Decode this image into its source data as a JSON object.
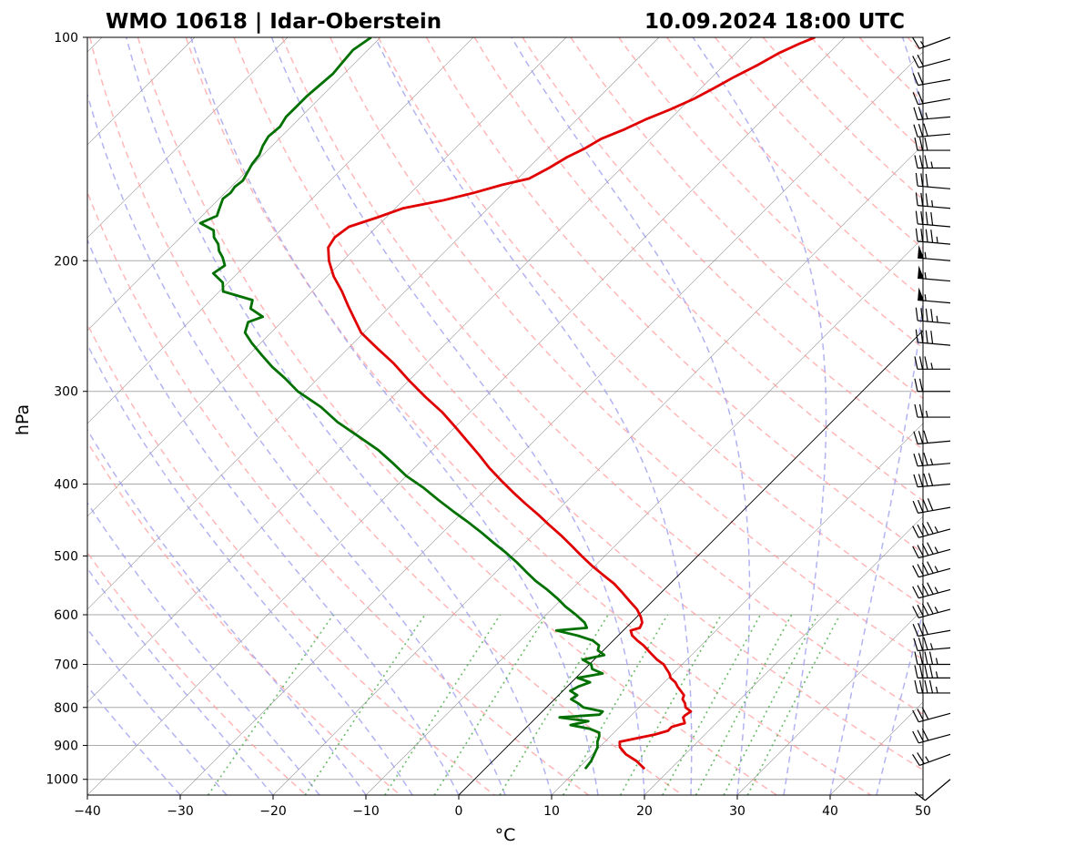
{
  "chart_data": {
    "type": "line",
    "subtype": "skew-t log-p sounding",
    "title_left": "WMO 10618 | Idar-Oberstein",
    "title_right": "10.09.2024 18:00 UTC",
    "xlabel": "°C",
    "ylabel": "hPa",
    "xlim": [
      -40,
      50
    ],
    "ylim": [
      1050,
      100
    ],
    "x_ticks": [
      -40,
      -30,
      -20,
      -10,
      0,
      10,
      20,
      30,
      40,
      50
    ],
    "x_tick_labels": [
      "−40",
      "−30",
      "−20",
      "−10",
      "0",
      "10",
      "20",
      "30",
      "40",
      "50"
    ],
    "y_ticks": [
      1000,
      900,
      800,
      700,
      600,
      500,
      400,
      300,
      200,
      100
    ],
    "y_tick_labels": [
      "1000",
      "900",
      "800",
      "700",
      "600",
      "500",
      "400",
      "300",
      "200",
      "100"
    ],
    "colors": {
      "temperature": "#e00000",
      "dewpoint": "#007000",
      "dry_adiabat": "#ff9999",
      "moist_adiabat": "#9999ee",
      "mixing_ratio": "#44aa44",
      "isotherm": "#777777",
      "grid": "#aaaaaa"
    },
    "series": [
      {
        "name": "Temperature",
        "pressure": [
          968,
          945,
          925,
          905,
          890,
          870,
          860,
          850,
          840,
          825,
          820,
          810,
          800,
          790,
          780,
          770,
          760,
          750,
          740,
          730,
          720,
          710,
          700,
          690,
          680,
          670,
          660,
          650,
          640,
          630,
          625,
          615,
          605,
          590,
          575,
          560,
          545,
          530,
          515,
          500,
          485,
          470,
          455,
          440,
          425,
          410,
          395,
          380,
          365,
          350,
          335,
          320,
          305,
          290,
          275,
          262,
          250,
          240,
          230,
          220,
          210,
          200,
          192,
          186,
          180,
          175,
          170,
          166,
          162,
          158,
          155,
          150,
          145,
          141,
          137,
          133,
          129,
          125,
          121,
          117,
          113,
          109,
          105,
          102,
          100
        ],
        "values": [
          17.2,
          15.5,
          13.6,
          12.2,
          11.6,
          14.6,
          15.6,
          15.6,
          16.6,
          15.8,
          15.8,
          16.0,
          15.0,
          14.5,
          13.8,
          13.5,
          12.7,
          11.9,
          11.2,
          10.2,
          9.6,
          8.8,
          8.0,
          6.8,
          5.8,
          4.8,
          3.8,
          2.6,
          1.5,
          0.8,
          1.5,
          1.2,
          0.5,
          -0.8,
          -2.5,
          -4.2,
          -6.0,
          -8.2,
          -10.4,
          -12.5,
          -14.6,
          -16.8,
          -19.2,
          -21.6,
          -24.2,
          -26.8,
          -29.4,
          -32.0,
          -34.5,
          -37.2,
          -40.0,
          -43.0,
          -46.5,
          -50.0,
          -53.5,
          -57.0,
          -60.3,
          -62.4,
          -64.6,
          -66.8,
          -69.3,
          -71.5,
          -73.0,
          -73.4,
          -73.0,
          -71.0,
          -69.2,
          -65.8,
          -63.2,
          -61.0,
          -58.8,
          -57.8,
          -57.0,
          -56.0,
          -55.3,
          -53.8,
          -52.6,
          -51.0,
          -49.6,
          -48.6,
          -47.6,
          -46.4,
          -45.4,
          -44.2,
          -43.2
        ]
      },
      {
        "name": "Dewpoint",
        "pressure": [
          968,
          945,
          925,
          905,
          890,
          875,
          865,
          855,
          845,
          835,
          825,
          818,
          810,
          800,
          790,
          780,
          770,
          760,
          750,
          740,
          730,
          720,
          710,
          700,
          690,
          680,
          670,
          660,
          650,
          640,
          630,
          625,
          615,
          600,
          585,
          570,
          555,
          540,
          525,
          510,
          495,
          480,
          465,
          450,
          435,
          420,
          405,
          390,
          375,
          360,
          345,
          330,
          315,
          300,
          288,
          278,
          268,
          258,
          250,
          242,
          238,
          232,
          226,
          220,
          214,
          208,
          203,
          198,
          194,
          190,
          186,
          182,
          178,
          174,
          171,
          168,
          165,
          162,
          159,
          156,
          152,
          148,
          144,
          140,
          136,
          132,
          128,
          124,
          120,
          116,
          112,
          108,
          104,
          100
        ],
        "values": [
          10.8,
          10.6,
          10.2,
          9.8,
          9.2,
          8.8,
          8.4,
          7.0,
          4.5,
          6.0,
          2.5,
          6.5,
          6.5,
          4.0,
          3.0,
          1.8,
          2.0,
          0.8,
          1.2,
          2.0,
          0.2,
          2.4,
          0.8,
          0.2,
          -1.2,
          0.6,
          -0.6,
          -1.0,
          -2.2,
          -4.4,
          -7.2,
          -4.2,
          -5.0,
          -6.8,
          -8.8,
          -10.6,
          -12.6,
          -14.8,
          -16.8,
          -18.8,
          -21.0,
          -23.4,
          -25.8,
          -28.4,
          -31.2,
          -34.0,
          -36.8,
          -40.0,
          -42.8,
          -45.8,
          -49.4,
          -53.2,
          -56.6,
          -60.8,
          -63.6,
          -66.2,
          -68.6,
          -71.0,
          -72.8,
          -73.6,
          -72.6,
          -74.8,
          -75.5,
          -79.6,
          -80.6,
          -82.6,
          -82.2,
          -83.3,
          -84.4,
          -85.2,
          -86.4,
          -87.2,
          -89.4,
          -88.4,
          -88.8,
          -89.2,
          -89.6,
          -89.4,
          -89.6,
          -89.4,
          -89.8,
          -90.2,
          -90.4,
          -91.0,
          -91.4,
          -91.2,
          -91.6,
          -91.6,
          -91.6,
          -91.4,
          -91.2,
          -91.4,
          -91.6,
          -91.0
        ]
      }
    ],
    "wind_barbs": {
      "pressures": [
        1000,
        925,
        870,
        815,
        765,
        730,
        700,
        665,
        630,
        590,
        555,
        520,
        490,
        460,
        430,
        400,
        375,
        350,
        325,
        300,
        280,
        260,
        243,
        228,
        213,
        200,
        190,
        180,
        170,
        160,
        150,
        142,
        135,
        128,
        121,
        114,
        107,
        100
      ],
      "speed_kt": [
        10,
        25,
        30,
        30,
        45,
        45,
        45,
        35,
        30,
        45,
        45,
        45,
        45,
        45,
        40,
        40,
        35,
        30,
        25,
        20,
        35,
        40,
        45,
        55,
        55,
        55,
        45,
        40,
        35,
        30,
        35,
        30,
        30,
        25,
        20,
        20,
        20,
        15
      ],
      "direction_deg": [
        230,
        250,
        255,
        255,
        270,
        270,
        270,
        265,
        260,
        255,
        255,
        255,
        255,
        255,
        260,
        265,
        265,
        265,
        270,
        270,
        270,
        275,
        275,
        275,
        275,
        275,
        275,
        275,
        275,
        275,
        270,
        270,
        265,
        265,
        260,
        260,
        255,
        250
      ]
    },
    "grid": true,
    "legend": "none"
  }
}
